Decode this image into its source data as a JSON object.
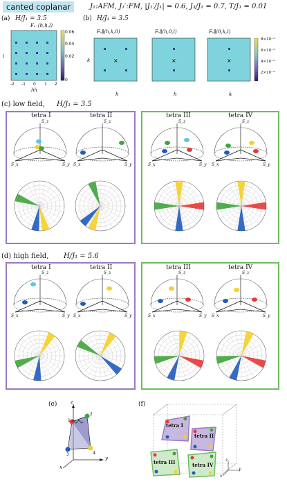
{
  "header": {
    "badge": "canted coplanar",
    "params": "J₁:AFM,   J₁′:FM,    |J₁′/J₁| = 0.6,  J₃/J₁ = 0.7,  T/J₁ = 0.01"
  },
  "panel_a": {
    "label": "(a)",
    "field": "H/J₁ = 3.5",
    "plot_title": "Fₛ₋(h,h,l)",
    "ylabel": "l",
    "xlabel": "hh",
    "colorbar_ticks": [
      "0.06",
      "0.04",
      "0.02",
      "0"
    ],
    "axis_ticks": [
      "-2",
      "-1",
      "0",
      "1",
      "2"
    ]
  },
  "panel_b": {
    "label": "(b)",
    "field": "H/J₁ = 3.5",
    "plots": [
      {
        "title": "Fₛ∥(h,k,0)",
        "xlabel": "h",
        "ylabel": "k"
      },
      {
        "title": "Fₛ∥(h,0,l)",
        "xlabel": "h",
        "ylabel": "l"
      },
      {
        "title": "Fₛ∥(0,k,l)",
        "xlabel": "k",
        "ylabel": "l"
      }
    ],
    "colorbar_ticks": [
      "8×10⁻⁴",
      "6×10⁻⁴",
      "4×10⁻⁴",
      "2×10⁻⁴"
    ],
    "axis_ticks": [
      "-1",
      "0",
      "1"
    ]
  },
  "panel_c": {
    "label": "(c) low field,",
    "field": "H/J₁ = 3.5",
    "tetra": [
      "tetra I",
      "tetra II",
      "tetra III",
      "tetra IV"
    ]
  },
  "panel_d": {
    "label": "(d) high field,",
    "field": "H/J₁ = 5.6",
    "tetra": [
      "tetra I",
      "tetra II",
      "tetra III",
      "tetra IV"
    ]
  },
  "axes_labels": {
    "sz": "S_z",
    "sx": "S_x",
    "sy": "S_y"
  },
  "panel_e": {
    "label": "(e)",
    "axes": [
      "z",
      "x",
      "y"
    ],
    "sites": [
      "1",
      "2",
      "3",
      "4"
    ]
  },
  "panel_f": {
    "label": "(f)",
    "tetra": [
      "tetra I",
      "tetra II",
      "tetra III",
      "tetra IV"
    ],
    "axes": [
      "z",
      "x",
      "y"
    ]
  },
  "colors": {
    "purple": "#9b79c4",
    "green": "#6abf5c",
    "cyan": "#7fd3dc",
    "red": "#e53935",
    "blue": "#1f5bbf",
    "yellow": "#f5d026",
    "green_spin": "#3fa53a",
    "light_blue": "#55c6e8"
  }
}
